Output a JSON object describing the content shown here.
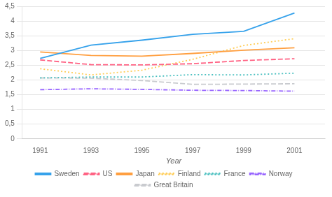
{
  "chart_data": {
    "type": "line",
    "x_label": "Year",
    "x": [
      1991,
      1993,
      1995,
      1997,
      1999,
      2001
    ],
    "series": [
      {
        "name": "Sweden",
        "values": [
          2.73,
          3.18,
          3.35,
          3.55,
          3.65,
          4.27
        ],
        "line_style": "solid"
      },
      {
        "name": "US",
        "values": [
          2.68,
          2.52,
          2.51,
          2.55,
          2.66,
          2.72
        ],
        "line_style": "dashed"
      },
      {
        "name": "Japan",
        "values": [
          2.95,
          2.83,
          2.81,
          2.9,
          3.01,
          3.09
        ],
        "line_style": "solid"
      },
      {
        "name": "Finland",
        "values": [
          2.38,
          2.17,
          2.33,
          2.7,
          3.17,
          3.4
        ],
        "line_style": "dotted"
      },
      {
        "name": "France",
        "values": [
          2.07,
          2.1,
          2.1,
          2.18,
          2.17,
          2.23
        ],
        "line_style": "dotted"
      },
      {
        "name": "Norway",
        "values": [
          1.67,
          1.7,
          1.68,
          1.65,
          1.64,
          1.62
        ],
        "line_style": "dashdot"
      },
      {
        "name": "Great Britain",
        "values": [
          2.07,
          2.06,
          1.98,
          1.85,
          1.86,
          1.87
        ],
        "line_style": "dashed"
      }
    ],
    "xlim": [
      1990.3,
      2002.2
    ],
    "xticks": [
      1991,
      1993,
      1995,
      1997,
      1999,
      2001
    ],
    "ylim": [
      0,
      4.5
    ],
    "yticks": [
      0,
      {
        "value": 0.5,
        "label": "0,5"
      },
      1,
      {
        "value": 1.5,
        "label": "1,5"
      },
      2,
      {
        "value": 2.5,
        "label": "2,5"
      },
      3,
      {
        "value": 3.5,
        "label": "3,5"
      },
      4,
      {
        "value": 4.5,
        "label": "4,5"
      }
    ],
    "grid": true,
    "legend": "bottom"
  }
}
